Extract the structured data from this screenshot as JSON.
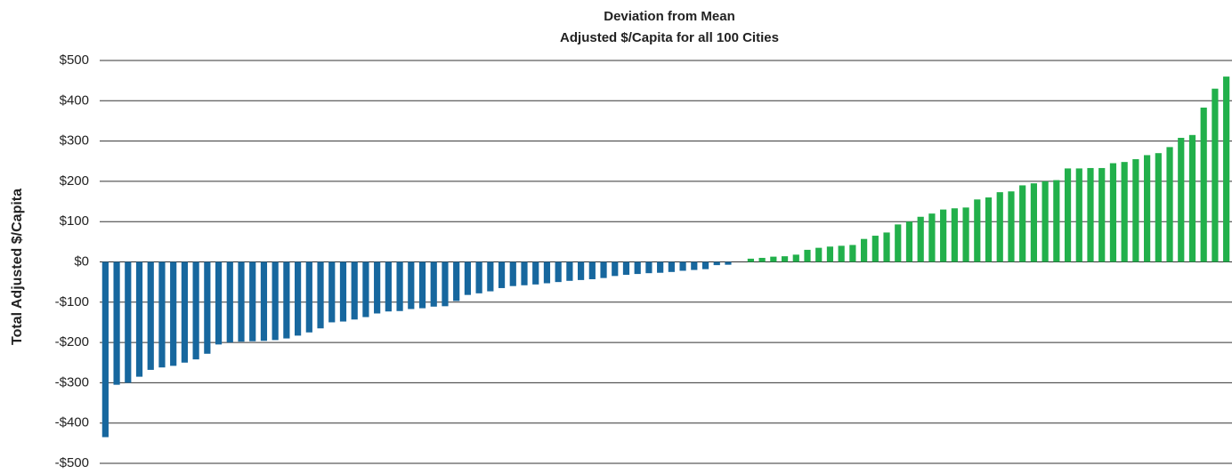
{
  "chart_data": {
    "type": "bar",
    "title": "Deviation from Mean",
    "subtitle": "Adjusted $/Capita for all 100 Cities",
    "y_label": "Total Adjusted $/Capita",
    "categories": [
      null,
      null,
      null,
      null,
      null,
      null,
      null,
      null,
      null,
      null,
      null,
      null,
      null,
      null,
      null,
      null,
      null,
      null,
      null,
      null,
      null,
      null,
      null,
      null,
      null,
      null,
      null,
      null,
      null,
      null,
      null,
      null,
      null,
      null,
      null,
      null,
      null,
      null,
      null,
      null,
      null,
      null,
      null,
      null,
      null,
      null,
      null,
      null,
      null,
      null,
      null,
      null,
      null,
      null,
      null,
      null,
      null,
      null,
      null,
      null,
      null,
      null,
      null,
      null,
      null,
      null,
      null,
      null,
      null,
      null,
      null,
      null,
      null,
      null,
      null,
      null,
      null,
      null,
      null,
      null,
      null,
      null,
      null,
      null,
      null,
      null,
      null,
      null,
      null,
      null,
      null,
      null,
      null,
      null,
      null,
      null,
      null,
      null,
      null,
      null
    ],
    "values": [
      -435,
      -305,
      -300,
      -285,
      -268,
      -262,
      -258,
      -250,
      -242,
      -228,
      -205,
      -200,
      -198,
      -197,
      -196,
      -194,
      -190,
      -183,
      -175,
      -165,
      -150,
      -148,
      -143,
      -137,
      -128,
      -123,
      -122,
      -117,
      -115,
      -111,
      -110,
      -97,
      -82,
      -78,
      -73,
      -65,
      -60,
      -58,
      -56,
      -53,
      -50,
      -47,
      -45,
      -43,
      -40,
      -35,
      -32,
      -30,
      -28,
      -27,
      -25,
      -22,
      -20,
      -18,
      -8,
      -7,
      0,
      8,
      10,
      13,
      14,
      18,
      30,
      35,
      38,
      40,
      42,
      57,
      65,
      73,
      93,
      100,
      112,
      120,
      130,
      133,
      135,
      155,
      160,
      173,
      175,
      190,
      195,
      200,
      203,
      232,
      232,
      233,
      233,
      245,
      248,
      255,
      265,
      270,
      285,
      308,
      315,
      383,
      430,
      460
    ],
    "negative_color": "#17679e",
    "positive_color": "#22b04b",
    "ylim": [
      -500,
      500
    ],
    "yticks": [
      {
        "value": -500,
        "label": "-$500"
      },
      {
        "value": -400,
        "label": "-$400"
      },
      {
        "value": -300,
        "label": "-$300"
      },
      {
        "value": -200,
        "label": "-$200"
      },
      {
        "value": -100,
        "label": "-$100"
      },
      {
        "value": 0,
        "label": "$0"
      },
      {
        "value": 100,
        "label": "$100"
      },
      {
        "value": 200,
        "label": "$200"
      },
      {
        "value": 300,
        "label": "$300"
      },
      {
        "value": 400,
        "label": "$400"
      },
      {
        "value": 500,
        "label": "$500"
      }
    ],
    "grid": true
  }
}
